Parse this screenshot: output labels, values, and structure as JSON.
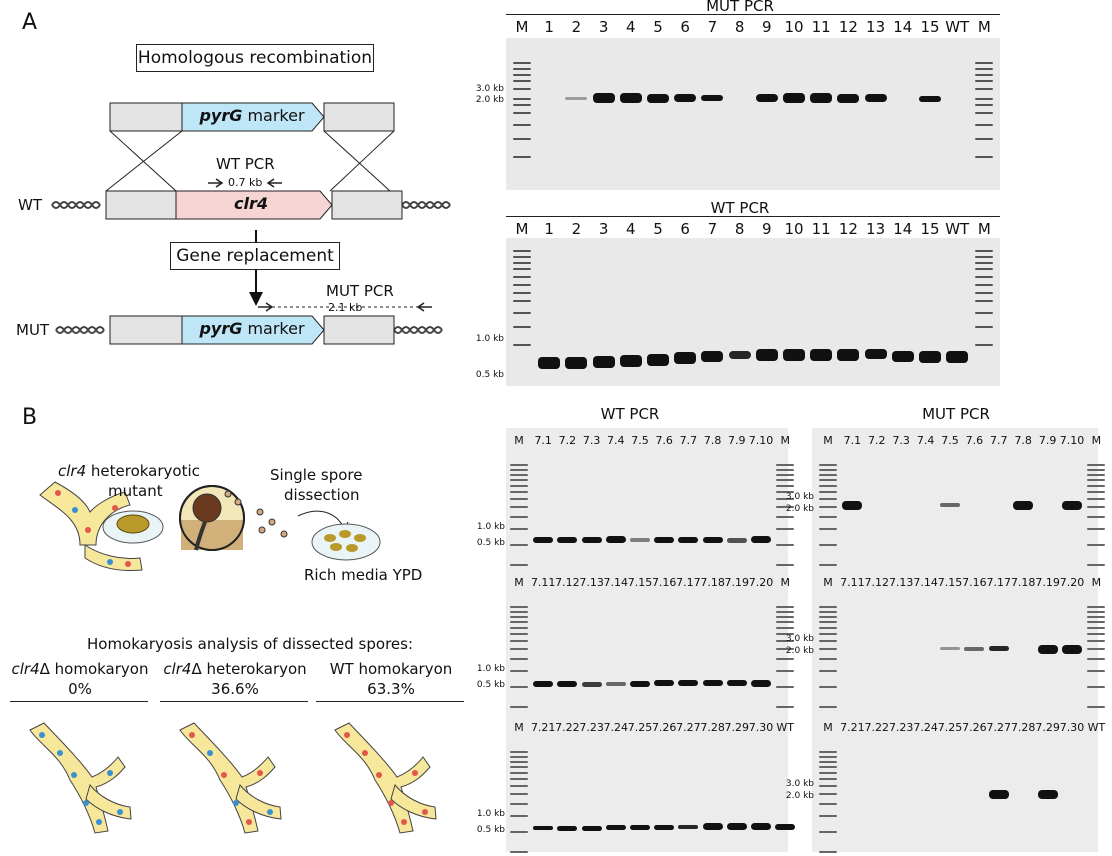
{
  "panelA": {
    "letter": "A",
    "homologous": "Homologous recombination",
    "pyrg_italic": "pyrG",
    "marker": " marker",
    "wt_pcr": "WT PCR",
    "wt_size": "0.7 kb",
    "wt_label": "WT",
    "clr4": "clr4",
    "gene_replacement": "Gene replacement",
    "mut_pcr": "MUT PCR",
    "mut_size": "2.1 kb",
    "mut_label": "MUT"
  },
  "gelA_mut": {
    "title": "MUT PCR",
    "lanes": [
      "M",
      "1",
      "2",
      "3",
      "4",
      "5",
      "6",
      "7",
      "8",
      "9",
      "10",
      "11",
      "12",
      "13",
      "14",
      "15",
      "WT",
      "M"
    ],
    "sizes": [
      "3.0 kb",
      "2.0 kb"
    ]
  },
  "gelA_wt": {
    "title": "WT PCR",
    "lanes": [
      "M",
      "1",
      "2",
      "3",
      "4",
      "5",
      "6",
      "7",
      "8",
      "9",
      "10",
      "11",
      "12",
      "13",
      "14",
      "15",
      "WT",
      "M"
    ],
    "sizes": [
      "1.0 kb",
      "0.5 kb"
    ]
  },
  "panelB": {
    "letter": "B",
    "clr4_italic": "clr4",
    "heterokaryotic": " heterokaryotic",
    "mutant": "mutant",
    "single_spore": "Single spore",
    "dissection": "dissection",
    "rich_media": "Rich media YPD",
    "homokaryosis": "Homokaryosis analysis of dissected spores:",
    "col1_italic": "clr4",
    "col1_delta": "Δ homokaryon",
    "col1_pct": "0%",
    "col2_italic": "clr4",
    "col2_delta": "Δ heterokaryon",
    "col2_pct": "36.6%",
    "col3_title": "WT homokaryon",
    "col3_pct": "63.3%"
  },
  "gelB_wt": {
    "title": "WT PCR",
    "row1": [
      "M",
      "7.1",
      "7.2",
      "7.3",
      "7.4",
      "7.5",
      "7.6",
      "7.7",
      "7.8",
      "7.9",
      "7.10",
      "M"
    ],
    "row2": [
      "M",
      "7.11",
      "7.12",
      "7.13",
      "7.14",
      "7.15",
      "7.16",
      "7.17",
      "7.18",
      "7.19",
      "7.20",
      "M"
    ],
    "row3": [
      "M",
      "7.21",
      "7.22",
      "7.23",
      "7.24",
      "7.25",
      "7.26",
      "7.27",
      "7.28",
      "7.29",
      "7.30",
      "WT"
    ],
    "sizes": [
      "1.0 kb",
      "0.5 kb"
    ]
  },
  "gelB_mut": {
    "title": "MUT PCR",
    "row1": [
      "M",
      "7.1",
      "7.2",
      "7.3",
      "7.4",
      "7.5",
      "7.6",
      "7.7",
      "7.8",
      "7.9",
      "7.10",
      "M"
    ],
    "row2": [
      "M",
      "7.11",
      "7.12",
      "7.13",
      "7.14",
      "7.15",
      "7.16",
      "7.17",
      "7.18",
      "7.19",
      "7.20",
      "M"
    ],
    "row3": [
      "M",
      "7.21",
      "7.22",
      "7.23",
      "7.24",
      "7.25",
      "7.26",
      "7.27",
      "7.28",
      "7.29",
      "7.30",
      "WT"
    ],
    "sizes": [
      "3.0 kb",
      "2.0 kb"
    ]
  },
  "colors": {
    "pyrg_fill": "#bfe6f7",
    "clr4_fill": "#f7d4d4",
    "grey_box": "#e3e3e3",
    "hypha_fill": "#f7e79b",
    "dot_red": "#e2564b",
    "dot_blue": "#3a8fd0"
  }
}
